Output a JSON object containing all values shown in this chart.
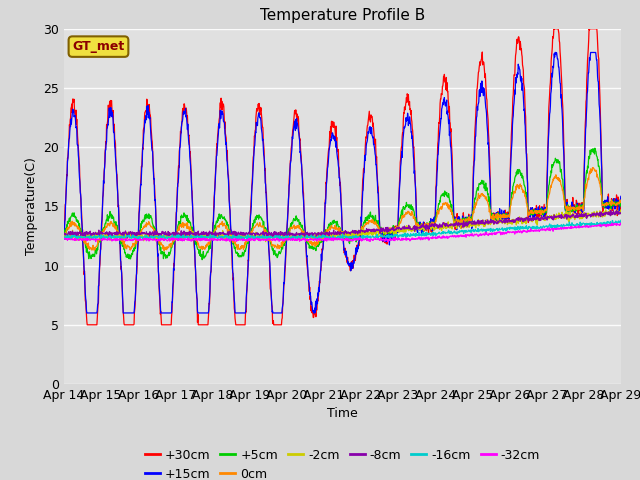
{
  "title": "Temperature Profile B",
  "xlabel": "Time",
  "ylabel": "Temperature(C)",
  "ylim": [
    0,
    30
  ],
  "yticks": [
    0,
    5,
    10,
    15,
    20,
    25,
    30
  ],
  "xtick_labels": [
    "Apr 14",
    "Apr 15",
    "Apr 16",
    "Apr 17",
    "Apr 18",
    "Apr 19",
    "Apr 20",
    "Apr 21",
    "Apr 22",
    "Apr 23",
    "Apr 24",
    "Apr 25",
    "Apr 26",
    "Apr 27",
    "Apr 28",
    "Apr 29"
  ],
  "annotation_text": "GT_met",
  "series_colors": {
    "+30cm": "#ff0000",
    "+15cm": "#0000ff",
    "+5cm": "#00cc00",
    "0cm": "#ff8800",
    "-2cm": "#cccc00",
    "-8cm": "#8800aa",
    "-16cm": "#00cccc",
    "-32cm": "#ff00ff"
  },
  "fig_bg": "#d8d8d8",
  "plot_bg": "#e0e0e0",
  "title_fontsize": 11,
  "axis_fontsize": 9,
  "legend_fontsize": 9,
  "num_points": 1440,
  "transition_day": 7.0,
  "base_temp": 12.5
}
